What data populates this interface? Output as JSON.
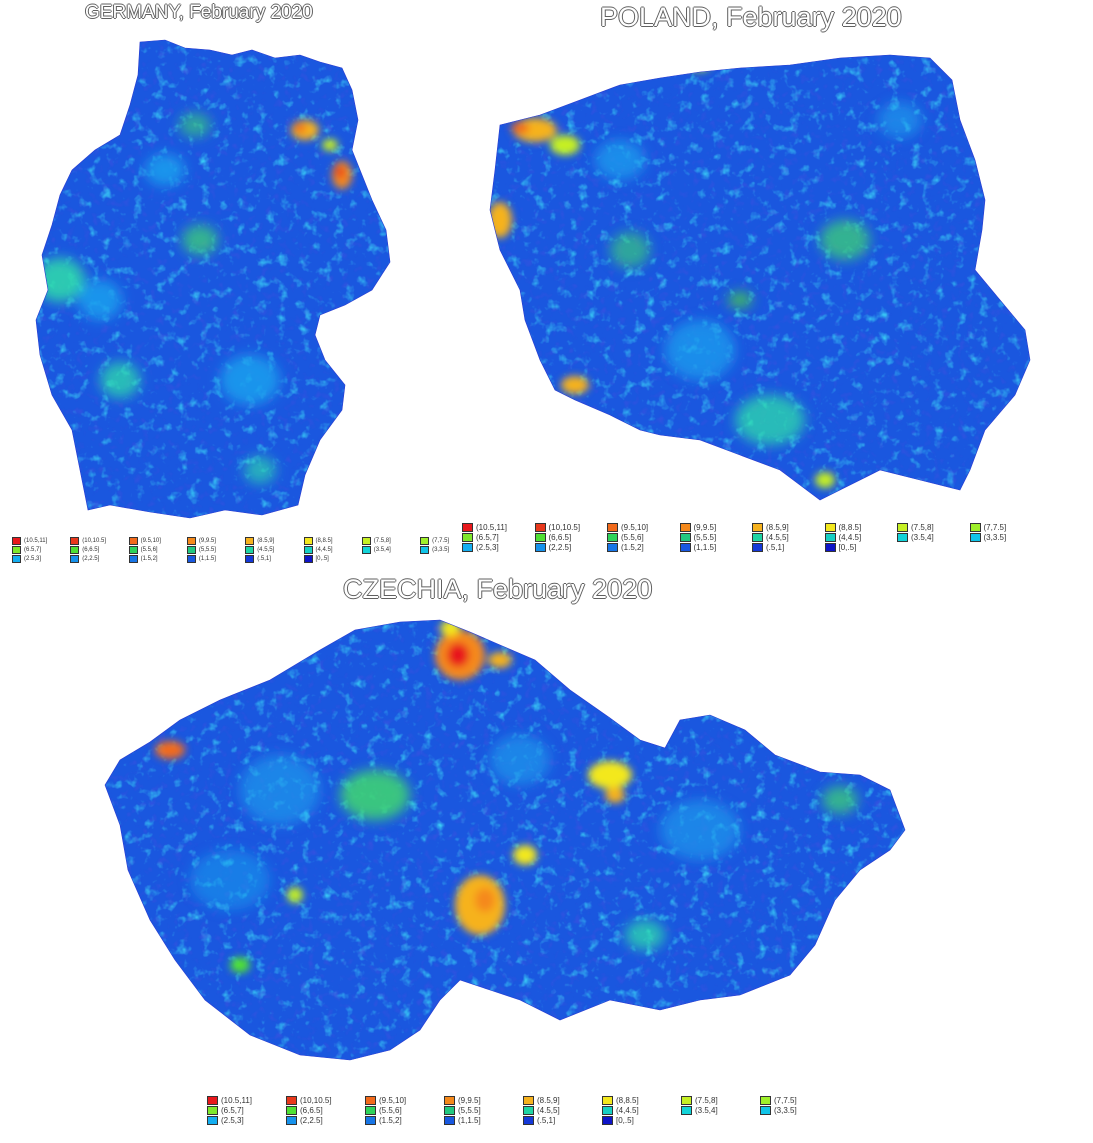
{
  "titles": {
    "germany": "GERMANY, February 2020",
    "poland": "POLAND, February 2020",
    "czechia": "CZECHIA, February 2020"
  },
  "legends": {
    "germany": [
      {
        "label": "(10.5,11]",
        "color": "#e8181c"
      },
      {
        "label": "(10,10.5]",
        "color": "#e8381c"
      },
      {
        "label": "(9.5,10]",
        "color": "#f26a1b"
      },
      {
        "label": "(9,9.5]",
        "color": "#f5891b"
      },
      {
        "label": "(8.5,9]",
        "color": "#f6b21e"
      },
      {
        "label": "(8,8.5]",
        "color": "#f3e81e"
      },
      {
        "label": "(7.5,8]",
        "color": "#c6f024"
      },
      {
        "label": "(7,7.5]",
        "color": "#9ff02a"
      },
      {
        "label": "(6.5,7]",
        "color": "#7fe82c"
      },
      {
        "label": "(6,6.5]",
        "color": "#4fe034"
      },
      {
        "label": "(5.5,6]",
        "color": "#2ed35a"
      },
      {
        "label": "(5,5.5]",
        "color": "#22c880"
      },
      {
        "label": "(4.5,5]",
        "color": "#1fd4a4"
      },
      {
        "label": "(4,4.5]",
        "color": "#17cfc4"
      },
      {
        "label": "(3.5,4]",
        "color": "#12d3d8"
      },
      {
        "label": "(3,3.5]",
        "color": "#10c4e8"
      },
      {
        "label": "(2.5,3]",
        "color": "#14aef0"
      },
      {
        "label": "(2,2.5]",
        "color": "#1692ec"
      },
      {
        "label": "(1.5,2]",
        "color": "#1775e6"
      },
      {
        "label": "(1,1.5]",
        "color": "#1858e0"
      },
      {
        "label": "(.5,1]",
        "color": "#1438d8"
      },
      {
        "label": "[0,.5]",
        "color": "#0e14c8"
      }
    ],
    "poland": [
      {
        "label": "(10.5,11]",
        "color": "#e8181c"
      },
      {
        "label": "(10,10.5]",
        "color": "#e8381c"
      },
      {
        "label": "(9.5,10]",
        "color": "#f26a1b"
      },
      {
        "label": "(9,9.5]",
        "color": "#f5891b"
      },
      {
        "label": "(8.5,9]",
        "color": "#f6b21e"
      },
      {
        "label": "(8,8.5]",
        "color": "#f3e81e"
      },
      {
        "label": "(7.5,8]",
        "color": "#c6f024"
      },
      {
        "label": "(7,7.5]",
        "color": "#9ff02a"
      },
      {
        "label": "(6.5,7]",
        "color": "#7fe82c"
      },
      {
        "label": "(6,6.5]",
        "color": "#4fe034"
      },
      {
        "label": "(5.5,6]",
        "color": "#2ed35a"
      },
      {
        "label": "(5,5.5]",
        "color": "#22c880"
      },
      {
        "label": "(4.5,5]",
        "color": "#1fd4a4"
      },
      {
        "label": "(4,4.5]",
        "color": "#17cfc4"
      },
      {
        "label": "(3.5,4]",
        "color": "#12d3d8"
      },
      {
        "label": "(3,3.5]",
        "color": "#10c4e8"
      },
      {
        "label": "(2.5,3]",
        "color": "#14aef0"
      },
      {
        "label": "(2,2.5]",
        "color": "#1692ec"
      },
      {
        "label": "(1.5,2]",
        "color": "#1775e6"
      },
      {
        "label": "(1,1.5]",
        "color": "#1858e0"
      },
      {
        "label": "(.5,1]",
        "color": "#1438d8"
      },
      {
        "label": "[0,.5]",
        "color": "#0e14c8"
      }
    ],
    "czechia": [
      {
        "label": "(10.5,11]",
        "color": "#e8181c"
      },
      {
        "label": "(10,10.5]",
        "color": "#e8381c"
      },
      {
        "label": "(9.5,10]",
        "color": "#f26a1b"
      },
      {
        "label": "(9,9.5]",
        "color": "#f5891b"
      },
      {
        "label": "(8.5,9]",
        "color": "#f6b21e"
      },
      {
        "label": "(8,8.5]",
        "color": "#f3e81e"
      },
      {
        "label": "(7.5,8]",
        "color": "#c6f024"
      },
      {
        "label": "(7,7.5]",
        "color": "#9ff02a"
      },
      {
        "label": "(6.5,7]",
        "color": "#7fe82c"
      },
      {
        "label": "(6,6.5]",
        "color": "#4fe034"
      },
      {
        "label": "(5.5,6]",
        "color": "#2ed35a"
      },
      {
        "label": "(5,5.5]",
        "color": "#22c880"
      },
      {
        "label": "(4.5,5]",
        "color": "#1fd4a4"
      },
      {
        "label": "(4,4.5]",
        "color": "#17cfc4"
      },
      {
        "label": "(3.5,4]",
        "color": "#12d3d8"
      },
      {
        "label": "(3,3.5]",
        "color": "#10c4e8"
      },
      {
        "label": "(2.5,3]",
        "color": "#14aef0"
      },
      {
        "label": "(2,2.5]",
        "color": "#1692ec"
      },
      {
        "label": "(1.5,2]",
        "color": "#1775e6"
      },
      {
        "label": "(1,1.5]",
        "color": "#1858e0"
      },
      {
        "label": "(.5,1]",
        "color": "#1438d8"
      },
      {
        "label": "[0,.5]",
        "color": "#0e14c8"
      }
    ]
  }
}
